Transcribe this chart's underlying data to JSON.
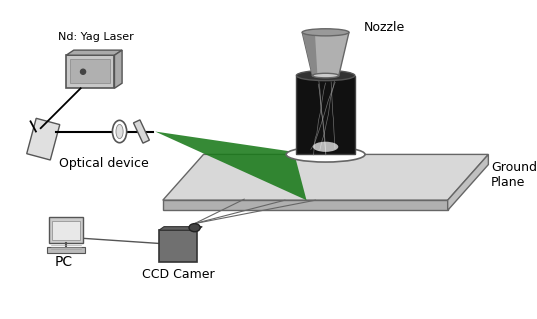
{
  "background_color": "#ffffff",
  "labels": {
    "laser": "Nd: Yag Laser",
    "optical": "Optical device",
    "nozzle": "Nozzle",
    "ground": "Ground\nPlane",
    "pc": "PC",
    "ccd": "CCD Camer"
  },
  "label_fontsize": 9,
  "figsize": [
    5.37,
    3.19
  ],
  "dpi": 100,
  "xlim": [
    0,
    10
  ],
  "ylim": [
    0,
    6
  ]
}
